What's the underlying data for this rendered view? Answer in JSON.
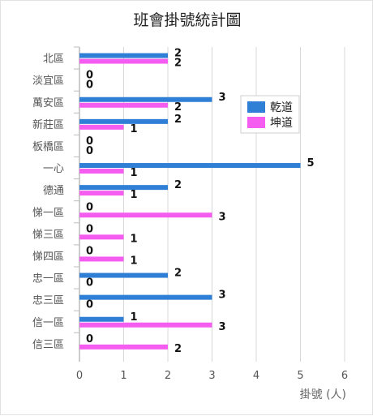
{
  "chart_data": {
    "type": "bar",
    "orientation": "horizontal",
    "title": "班會掛號統計圖",
    "xlabel": "掛號 (人)",
    "ylabel": "",
    "xlim": [
      0,
      6
    ],
    "xticks": [
      "0",
      "1",
      "2",
      "3",
      "4",
      "5",
      "6"
    ],
    "grid": true,
    "legend_position": "top-right",
    "categories": [
      "北區",
      "淡宜區",
      "萬安區",
      "新莊區",
      "板橋區",
      "一心",
      "德通",
      "悌一區",
      "悌三區",
      "悌四區",
      "忠一區",
      "忠三區",
      "信一區",
      "信三區"
    ],
    "series": [
      {
        "name": "乾道",
        "color": "#2f7fd6",
        "values": [
          2,
          0,
          3,
          2,
          0,
          5,
          2,
          0,
          0,
          0,
          2,
          3,
          1,
          0
        ]
      },
      {
        "name": "坤道",
        "color": "#f55cf0",
        "values": [
          2,
          0,
          2,
          1,
          0,
          1,
          1,
          3,
          1,
          1,
          0,
          0,
          3,
          2
        ]
      }
    ]
  }
}
